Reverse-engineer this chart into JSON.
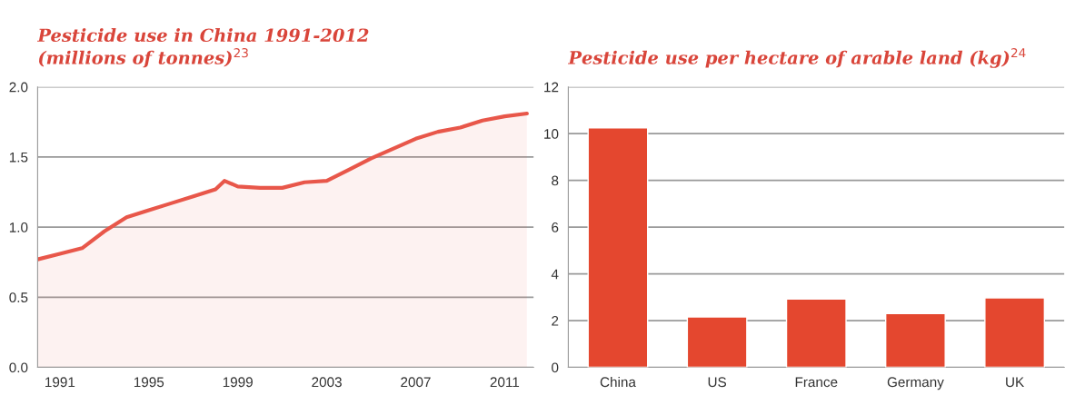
{
  "chart_data": [
    {
      "type": "area",
      "title": "Pesticide use in China 1991-2012\n(millions of tonnes)$^{23}$",
      "x": [
        1990,
        1991,
        1992,
        1993,
        1994,
        1995,
        1996,
        1997,
        1998,
        1998.4,
        1999,
        2000,
        2001,
        2002,
        2003,
        2004,
        2005,
        2006,
        2007,
        2008,
        2009,
        2010,
        2011,
        2012
      ],
      "series": [
        {
          "color": "#e8574a",
          "values": [
            0.77,
            0.81,
            0.85,
            0.97,
            1.07,
            1.12,
            1.17,
            1.22,
            1.27,
            1.33,
            1.29,
            1.28,
            1.28,
            1.32,
            1.33,
            1.41,
            1.49,
            1.56,
            1.63,
            1.68,
            1.71,
            1.76,
            1.79,
            1.81
          ]
        }
      ],
      "xlim": [
        1990,
        2012.3
      ],
      "xticks": [
        1991,
        1995,
        1999,
        2003,
        2007,
        2011
      ],
      "ylim": [
        0,
        2
      ],
      "yticks": [
        {
          "value": 0,
          "label": "0.0"
        },
        {
          "value": 0.5,
          "label": "0.5"
        },
        {
          "value": 1,
          "label": "1.0"
        },
        {
          "value": 1.5,
          "label": "1.5"
        },
        {
          "value": 2,
          "label": "2.0"
        }
      ],
      "grid": "y"
    },
    {
      "type": "bar",
      "title": "Pesticide use per hectare of arable land (kg)$^{24}$",
      "categories": [
        "China",
        "US",
        "France",
        "Germany",
        "UK"
      ],
      "series": [
        {
          "color": "#e4472f",
          "values": [
            10.25,
            2.16,
            2.92,
            2.3,
            2.97
          ]
        }
      ],
      "ylim": [
        0,
        12
      ],
      "yticks": [
        0,
        2,
        4,
        6,
        8,
        10,
        12
      ],
      "grid": "y"
    }
  ]
}
